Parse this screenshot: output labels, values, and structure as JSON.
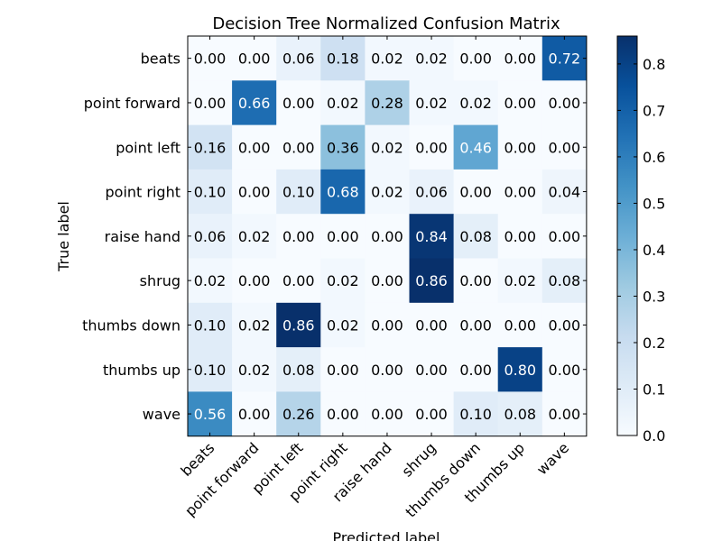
{
  "chart_data": {
    "type": "heatmap",
    "title": "Decision Tree Normalized Confusion Matrix",
    "xlabel": "Predicted label",
    "ylabel": "True label",
    "x_categories": [
      "beats",
      "point forward",
      "point left",
      "point right",
      "raise hand",
      "shrug",
      "thumbs down",
      "thumbs up",
      "wave"
    ],
    "y_categories": [
      "beats",
      "point forward",
      "point left",
      "point right",
      "raise hand",
      "shrug",
      "thumbs down",
      "thumbs up",
      "wave"
    ],
    "values": [
      [
        0.0,
        0.0,
        0.06,
        0.18,
        0.02,
        0.02,
        0.0,
        0.0,
        0.72
      ],
      [
        0.0,
        0.66,
        0.0,
        0.02,
        0.28,
        0.02,
        0.02,
        0.0,
        0.0
      ],
      [
        0.16,
        0.0,
        0.0,
        0.36,
        0.02,
        0.0,
        0.46,
        0.0,
        0.0
      ],
      [
        0.1,
        0.0,
        0.1,
        0.68,
        0.02,
        0.06,
        0.0,
        0.0,
        0.04
      ],
      [
        0.06,
        0.02,
        0.0,
        0.0,
        0.0,
        0.84,
        0.08,
        0.0,
        0.0
      ],
      [
        0.02,
        0.0,
        0.0,
        0.02,
        0.0,
        0.86,
        0.0,
        0.02,
        0.08
      ],
      [
        0.1,
        0.02,
        0.86,
        0.02,
        0.0,
        0.0,
        0.0,
        0.0,
        0.0
      ],
      [
        0.1,
        0.02,
        0.08,
        0.0,
        0.0,
        0.0,
        0.0,
        0.8,
        0.0
      ],
      [
        0.56,
        0.0,
        0.26,
        0.0,
        0.0,
        0.0,
        0.1,
        0.08,
        0.0
      ]
    ],
    "colormap": "Blues",
    "value_range": [
      0.0,
      0.86
    ],
    "colorbar_ticks": [
      "0.0",
      "0.1",
      "0.2",
      "0.3",
      "0.4",
      "0.5",
      "0.6",
      "0.7",
      "0.8"
    ],
    "text_color_dark": "#000000",
    "text_color_light": "#ffffff"
  }
}
